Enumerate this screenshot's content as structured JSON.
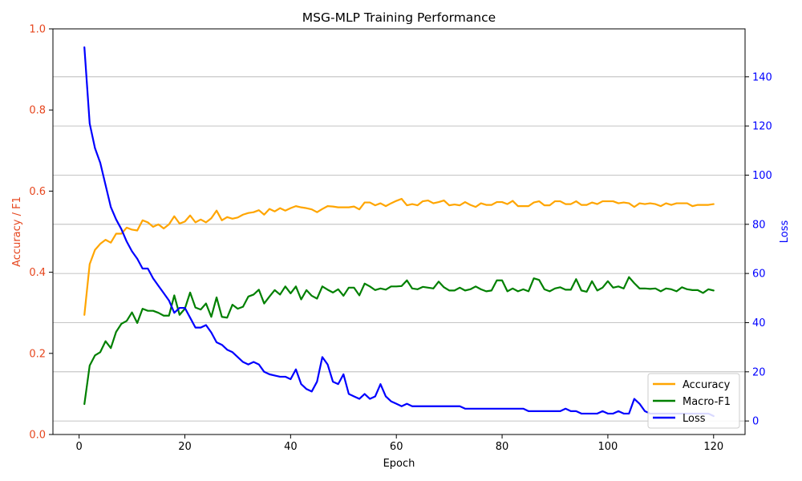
{
  "chart_data": {
    "type": "line",
    "title": "MSG-MLP Training Performance",
    "xlabel": "Epoch",
    "ylabel_left": "Accuracy / F1",
    "ylabel_right": "Loss",
    "xlim": [
      -4.95,
      125.95
    ],
    "ylim_left": [
      0,
      1.0
    ],
    "ylim_right": [
      -5.5,
      159.5
    ],
    "x_ticks": [
      0,
      20,
      40,
      60,
      80,
      100,
      120
    ],
    "y_ticks_left": [
      0.0,
      0.2,
      0.4,
      0.6,
      0.8,
      1.0
    ],
    "y_ticks_right": [
      0,
      20,
      40,
      60,
      80,
      100,
      120,
      140
    ],
    "grid": "right-axis horizontal",
    "legend_position": "bottom-right",
    "colors": {
      "left_axis": "#e6461e",
      "right_axis": "#0000ff",
      "accuracy": "#ffa500",
      "macro_f1": "#008000",
      "loss": "#0000ff"
    },
    "x": [
      1,
      2,
      3,
      4,
      5,
      6,
      7,
      8,
      9,
      10,
      11,
      12,
      13,
      14,
      15,
      16,
      17,
      18,
      19,
      20,
      21,
      22,
      23,
      24,
      25,
      26,
      27,
      28,
      29,
      30,
      31,
      32,
      33,
      34,
      35,
      36,
      37,
      38,
      39,
      40,
      41,
      42,
      43,
      44,
      45,
      46,
      47,
      48,
      49,
      50,
      51,
      52,
      53,
      54,
      55,
      56,
      57,
      58,
      59,
      60,
      61,
      62,
      63,
      64,
      65,
      66,
      67,
      68,
      69,
      70,
      71,
      72,
      73,
      74,
      75,
      76,
      77,
      78,
      79,
      80,
      81,
      82,
      83,
      84,
      85,
      86,
      87,
      88,
      89,
      90,
      91,
      92,
      93,
      94,
      95,
      96,
      97,
      98,
      99,
      100,
      101,
      102,
      103,
      104,
      105,
      106,
      107,
      108,
      109,
      110,
      111,
      112,
      113,
      114,
      115,
      116,
      117,
      118,
      119,
      120
    ],
    "series": [
      {
        "name": "Accuracy",
        "axis": "left",
        "values": [
          0.295,
          0.42,
          0.455,
          0.47,
          0.48,
          0.473,
          0.495,
          0.495,
          0.51,
          0.505,
          0.503,
          0.528,
          0.523,
          0.512,
          0.518,
          0.508,
          0.518,
          0.538,
          0.52,
          0.525,
          0.54,
          0.523,
          0.53,
          0.523,
          0.533,
          0.552,
          0.528,
          0.536,
          0.532,
          0.535,
          0.542,
          0.546,
          0.548,
          0.553,
          0.542,
          0.556,
          0.55,
          0.558,
          0.552,
          0.558,
          0.563,
          0.56,
          0.558,
          0.555,
          0.548,
          0.556,
          0.563,
          0.562,
          0.56,
          0.56,
          0.56,
          0.562,
          0.555,
          0.572,
          0.572,
          0.565,
          0.57,
          0.563,
          0.57,
          0.576,
          0.581,
          0.565,
          0.568,
          0.565,
          0.575,
          0.577,
          0.57,
          0.573,
          0.577,
          0.565,
          0.567,
          0.565,
          0.573,
          0.566,
          0.561,
          0.57,
          0.566,
          0.566,
          0.573,
          0.573,
          0.568,
          0.576,
          0.563,
          0.563,
          0.563,
          0.572,
          0.575,
          0.565,
          0.565,
          0.575,
          0.575,
          0.568,
          0.568,
          0.575,
          0.566,
          0.566,
          0.572,
          0.568,
          0.575,
          0.575,
          0.575,
          0.57,
          0.572,
          0.57,
          0.561,
          0.57,
          0.568,
          0.57,
          0.568,
          0.563,
          0.57,
          0.566,
          0.57,
          0.57,
          0.57,
          0.563,
          0.566,
          0.566,
          0.566,
          0.568
        ]
      },
      {
        "name": "Macro-F1",
        "axis": "left",
        "values": [
          0.075,
          0.17,
          0.195,
          0.203,
          0.23,
          0.213,
          0.253,
          0.273,
          0.28,
          0.301,
          0.275,
          0.31,
          0.305,
          0.305,
          0.3,
          0.293,
          0.293,
          0.343,
          0.295,
          0.31,
          0.35,
          0.313,
          0.308,
          0.323,
          0.29,
          0.338,
          0.29,
          0.288,
          0.32,
          0.31,
          0.315,
          0.34,
          0.345,
          0.357,
          0.323,
          0.34,
          0.356,
          0.345,
          0.365,
          0.348,
          0.365,
          0.333,
          0.356,
          0.342,
          0.335,
          0.365,
          0.357,
          0.35,
          0.358,
          0.342,
          0.362,
          0.362,
          0.343,
          0.372,
          0.365,
          0.356,
          0.36,
          0.357,
          0.365,
          0.365,
          0.366,
          0.38,
          0.36,
          0.358,
          0.364,
          0.362,
          0.36,
          0.377,
          0.363,
          0.355,
          0.355,
          0.362,
          0.355,
          0.358,
          0.365,
          0.358,
          0.353,
          0.355,
          0.38,
          0.38,
          0.353,
          0.36,
          0.353,
          0.358,
          0.353,
          0.385,
          0.381,
          0.358,
          0.353,
          0.36,
          0.363,
          0.357,
          0.357,
          0.383,
          0.355,
          0.352,
          0.378,
          0.355,
          0.362,
          0.378,
          0.362,
          0.365,
          0.36,
          0.388,
          0.373,
          0.36,
          0.36,
          0.359,
          0.36,
          0.353,
          0.36,
          0.358,
          0.353,
          0.363,
          0.358,
          0.356,
          0.356,
          0.349,
          0.358,
          0.355
        ]
      },
      {
        "name": "Loss",
        "axis": "right",
        "values": [
          152,
          121,
          111,
          105,
          96,
          87,
          82,
          78,
          73,
          69,
          66,
          62,
          62,
          58,
          55,
          52,
          49,
          44,
          46,
          46,
          42,
          38,
          38,
          39,
          36,
          32,
          31,
          29,
          28,
          26,
          24,
          23,
          24,
          23,
          20,
          19,
          18.5,
          18,
          18,
          17,
          21,
          15,
          13,
          12,
          16,
          26,
          23,
          16,
          15,
          19,
          11,
          10,
          9,
          11,
          9,
          10,
          15,
          10,
          8,
          7,
          6,
          7,
          6,
          6,
          6,
          6,
          6,
          6,
          6,
          6,
          6,
          6,
          5,
          5,
          5,
          5,
          5,
          5,
          5,
          5,
          5,
          5,
          5,
          5,
          4,
          4,
          4,
          4,
          4,
          4,
          4,
          5,
          4,
          4,
          3,
          3,
          3,
          3,
          4,
          3,
          3,
          4,
          3,
          3,
          9,
          7,
          4,
          3,
          3,
          3,
          3,
          3,
          3,
          3,
          3,
          3,
          3,
          3,
          3,
          2
        ]
      }
    ]
  }
}
